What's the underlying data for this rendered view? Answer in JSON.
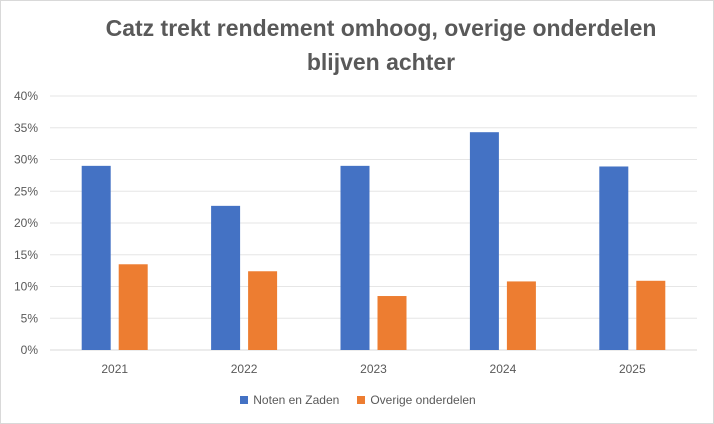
{
  "chart_data": {
    "type": "bar",
    "title": "Catz trekt rendement omhoog, overige onderdelen blijven achter",
    "title_lines": [
      "Catz trekt rendement omhoog, overige onderdelen",
      "blijven achter"
    ],
    "categories": [
      "2021",
      "2022",
      "2023",
      "2024",
      "2025"
    ],
    "series": [
      {
        "name": "Noten en Zaden",
        "color": "#4472C4",
        "values": [
          29.0,
          22.7,
          29.0,
          34.3,
          28.9
        ]
      },
      {
        "name": "Overige onderdelen",
        "color": "#ED7D31",
        "values": [
          13.5,
          12.4,
          8.5,
          10.8,
          10.9
        ]
      }
    ],
    "ylim": [
      0,
      40
    ],
    "yticks": [
      0,
      5,
      10,
      15,
      20,
      25,
      30,
      35,
      40
    ],
    "ytick_labels": [
      "0%",
      "5%",
      "10%",
      "15%",
      "20%",
      "25%",
      "30%",
      "35%",
      "40%"
    ],
    "xlabel": "",
    "ylabel": "",
    "grid": true,
    "legend": "bottom"
  }
}
